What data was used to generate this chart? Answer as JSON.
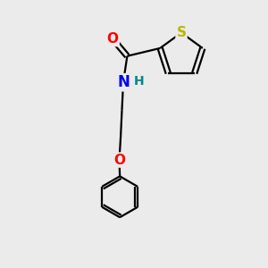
{
  "background_color": "#ebebeb",
  "atom_colors": {
    "S": "#b8b800",
    "O": "#ff0000",
    "N": "#0000ee",
    "H": "#008888",
    "C": "#000000"
  },
  "figsize": [
    3.0,
    3.0
  ],
  "dpi": 100
}
